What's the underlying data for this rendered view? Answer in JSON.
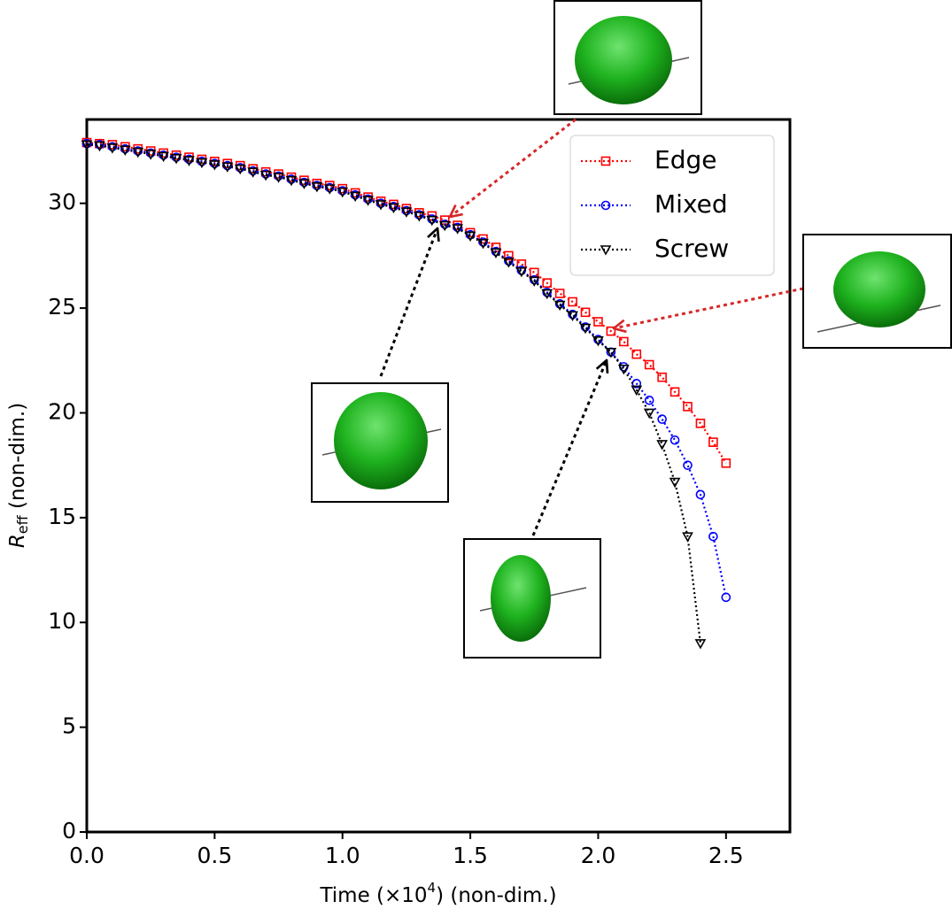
{
  "chart_data": {
    "type": "line",
    "xlabel": [
      "Time (×10",
      "4",
      ") (non-dim.)"
    ],
    "ylabel": [
      "R",
      "eff",
      " (non-dim.)"
    ],
    "x": [
      0,
      0.05,
      0.1,
      0.15,
      0.2,
      0.25,
      0.3,
      0.35,
      0.4,
      0.45,
      0.5,
      0.55,
      0.6,
      0.65,
      0.7,
      0.75,
      0.8,
      0.85,
      0.9,
      0.95,
      1.0,
      1.05,
      1.1,
      1.15,
      1.2,
      1.25,
      1.3,
      1.35,
      1.4,
      1.45,
      1.5,
      1.55,
      1.6,
      1.65,
      1.7,
      1.75,
      1.8,
      1.85,
      1.9,
      1.95,
      2.0,
      2.05,
      2.1,
      2.15,
      2.2,
      2.25,
      2.3,
      2.35,
      2.4,
      2.45,
      2.5
    ],
    "series": [
      {
        "name": "Edge",
        "color": "#ff0000",
        "marker": "square",
        "values": [
          32.9,
          32.85,
          32.8,
          32.7,
          32.6,
          32.5,
          32.4,
          32.3,
          32.2,
          32.1,
          32.0,
          31.9,
          31.8,
          31.65,
          31.5,
          31.4,
          31.25,
          31.1,
          30.95,
          30.85,
          30.7,
          30.5,
          30.3,
          30.1,
          29.95,
          29.75,
          29.55,
          29.4,
          29.2,
          28.95,
          28.6,
          28.3,
          27.9,
          27.5,
          27.1,
          26.7,
          26.2,
          25.7,
          25.3,
          24.8,
          24.35,
          23.9,
          23.4,
          22.8,
          22.3,
          21.7,
          21.0,
          20.3,
          19.5,
          18.6,
          17.6
        ]
      },
      {
        "name": "Mixed",
        "color": "#0000ff",
        "marker": "circle",
        "values": [
          32.85,
          32.8,
          32.7,
          32.6,
          32.5,
          32.4,
          32.3,
          32.2,
          32.1,
          32.0,
          31.9,
          31.8,
          31.7,
          31.55,
          31.4,
          31.3,
          31.15,
          31.0,
          30.85,
          30.75,
          30.6,
          30.4,
          30.2,
          30.0,
          29.85,
          29.65,
          29.45,
          29.25,
          29.0,
          28.85,
          28.5,
          28.15,
          27.7,
          27.25,
          26.8,
          26.35,
          25.75,
          25.2,
          24.7,
          24.1,
          23.5,
          22.9,
          22.2,
          21.4,
          20.6,
          19.7,
          18.7,
          17.5,
          16.1,
          14.1,
          11.2
        ]
      },
      {
        "name": "Screw",
        "color": "#000000",
        "marker": "triangle_down",
        "values": [
          32.8,
          32.75,
          32.65,
          32.55,
          32.45,
          32.35,
          32.25,
          32.15,
          32.05,
          31.95,
          31.85,
          31.75,
          31.65,
          31.5,
          31.35,
          31.25,
          31.1,
          30.95,
          30.8,
          30.7,
          30.55,
          30.35,
          30.15,
          29.95,
          29.8,
          29.6,
          29.4,
          29.2,
          28.95,
          28.8,
          28.45,
          28.1,
          27.65,
          27.2,
          26.75,
          26.3,
          25.7,
          25.15,
          24.65,
          24.05,
          23.45,
          22.9,
          22.1,
          21.1,
          20.0,
          18.5,
          16.7,
          14.1,
          9.0,
          null,
          null
        ]
      }
    ],
    "xlim": [
      0,
      2.75
    ],
    "xticks": [
      {
        "value": 0,
        "label": "0.0"
      },
      0.5,
      {
        "value": 1,
        "label": "1.0"
      },
      1.5,
      {
        "value": 2,
        "label": "2.0"
      },
      2.5
    ],
    "ylim": [
      0,
      34
    ],
    "yticks": [
      0,
      5,
      10,
      15,
      20,
      25,
      30
    ],
    "grid": false,
    "legend": "upper right"
  }
}
